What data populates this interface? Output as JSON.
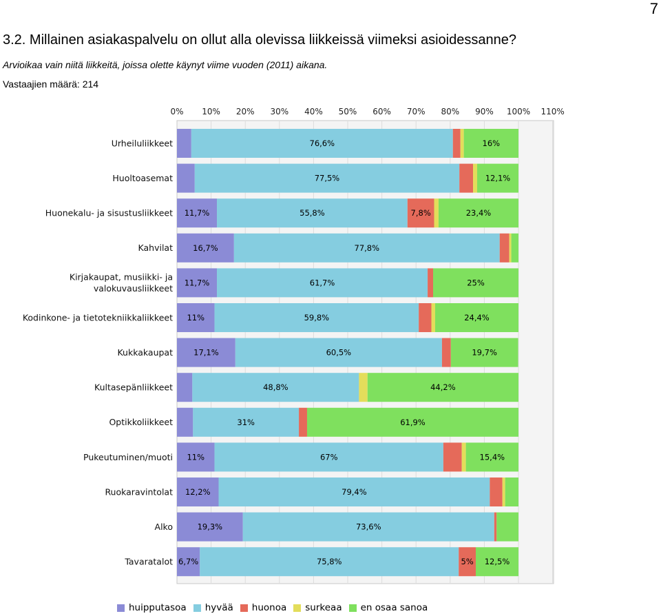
{
  "page_number": "7",
  "heading": "3.2. Millainen asiakaspalvelu on ollut alla olevissa liikkeissä viimeksi asioidessanne?",
  "note": "Arvioikaa vain niitä liikkeitä, joissa olette käynyt viime vuoden (2011) aikana.",
  "respondents": "Vastaajien määrä: 214",
  "chart_data": {
    "type": "bar",
    "orientation": "horizontal",
    "stacked": true,
    "xlim": [
      0,
      110
    ],
    "xticks": [
      "0%",
      "10%",
      "20%",
      "30%",
      "40%",
      "50%",
      "60%",
      "70%",
      "80%",
      "90%",
      "100%",
      "110%"
    ],
    "grid": true,
    "legend_position": "bottom",
    "categories": [
      "Urheiluliikkeet",
      "Huoltoasemat",
      "Huonekalu- ja sisustusliikkeet",
      "Kahvilat",
      "Kirjakaupat, musiikki- ja valokuvausliikkeet",
      "Kodinkone- ja tietotekniikkaliikkeet",
      "Kukkakaupat",
      "Kultasepänliikkeet",
      "Optikkoliikkeet",
      "Pukeutuminen/muoti",
      "Ruokaravintolat",
      "Alko",
      "Tavaratalot"
    ],
    "series": [
      {
        "name": "huipputasoa",
        "color": "#8b8bd6",
        "values": [
          4.2,
          5.2,
          11.7,
          16.7,
          11.7,
          11,
          17.1,
          4.5,
          4.7,
          11,
          12.2,
          19.3,
          6.7
        ],
        "labels": [
          "",
          "",
          "11,7%",
          "16,7%",
          "11,7%",
          "11%",
          "17,1%",
          "",
          "",
          "11%",
          "12,2%",
          "19,3%",
          "6,7%"
        ]
      },
      {
        "name": "hyvää",
        "color": "#85cde0",
        "values": [
          76.6,
          77.5,
          55.8,
          77.8,
          61.7,
          59.8,
          60.5,
          48.8,
          31,
          67,
          79.4,
          73.6,
          75.8
        ],
        "labels": [
          "76,6%",
          "77,5%",
          "55,8%",
          "77,8%",
          "61,7%",
          "59,8%",
          "60,5%",
          "48,8%",
          "31%",
          "67%",
          "79,4%",
          "73,6%",
          "75,8%"
        ]
      },
      {
        "name": "huonoa",
        "color": "#e56a5a",
        "values": [
          2.2,
          4,
          7.8,
          2.8,
          1.6,
          3.7,
          2.6,
          0,
          2.4,
          5.4,
          3.7,
          0.7,
          5
        ],
        "labels": [
          "",
          "",
          "7,8%",
          "",
          "",
          "",
          "",
          "",
          "",
          "",
          "",
          "",
          "5%"
        ]
      },
      {
        "name": "surkeaa",
        "color": "#e3dd5b",
        "values": [
          1,
          1.2,
          1.3,
          0.6,
          0,
          1.1,
          0,
          2.5,
          0,
          1.2,
          0.8,
          0,
          0
        ],
        "labels": [
          "",
          "",
          "",
          "",
          "",
          "",
          "",
          "",
          "",
          "",
          "",
          "",
          ""
        ]
      },
      {
        "name": "en osaa sanoa",
        "color": "#7fe05e",
        "values": [
          16,
          12.1,
          23.4,
          2.1,
          25,
          24.4,
          19.7,
          44.2,
          61.9,
          15.4,
          3.9,
          6.4,
          12.5
        ],
        "labels": [
          "16%",
          "12,1%",
          "23,4%",
          "",
          "25%",
          "24,4%",
          "19,7%",
          "44,2%",
          "61,9%",
          "15,4%",
          "",
          "",
          "12,5%"
        ]
      }
    ]
  }
}
